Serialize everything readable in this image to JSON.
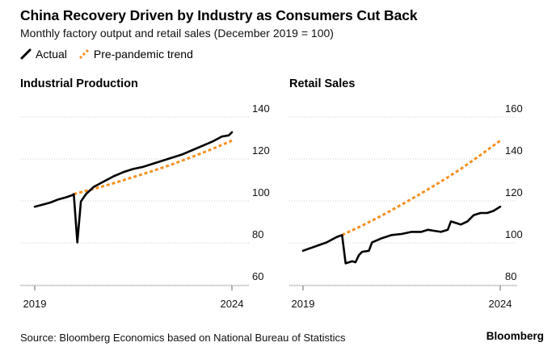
{
  "header": {
    "title": "China Recovery Driven by Industry as Consumers Cut Back",
    "subtitle": "Monthly factory output and retail sales (December 2019 = 100)"
  },
  "legend": {
    "actual_label": "Actual",
    "trend_label": "Pre-pandemic trend"
  },
  "colors": {
    "actual": "#000000",
    "trend": "#f5901f",
    "grid": "#cccccc"
  },
  "footer": {
    "source": "Source: Bloomberg Economics based on National Bureau of Statistics",
    "brand": "Bloomberg"
  },
  "chart_data": [
    {
      "type": "line",
      "title": "Industrial Production",
      "x_range": [
        2019.0,
        2024.0
      ],
      "x_ticks": [
        "2019",
        "2024"
      ],
      "ylim": [
        60,
        140
      ],
      "y_ticks": [
        60,
        80,
        100,
        120,
        140
      ],
      "y_axis_side": "right",
      "series": [
        {
          "name": "Actual",
          "style": "solid",
          "points": [
            [
              2019.0,
              93.0
            ],
            [
              2019.2,
              94.0
            ],
            [
              2019.4,
              95.0
            ],
            [
              2019.6,
              96.5
            ],
            [
              2019.8,
              97.5
            ],
            [
              2019.95,
              98.5
            ],
            [
              2019.99,
              99.0
            ],
            [
              2020.08,
              76.0
            ],
            [
              2020.17,
              95.5
            ],
            [
              2020.3,
              99.0
            ],
            [
              2020.5,
              102.5
            ],
            [
              2020.75,
              105.0
            ],
            [
              2021.0,
              107.5
            ],
            [
              2021.25,
              109.5
            ],
            [
              2021.5,
              111.0
            ],
            [
              2021.75,
              112.0
            ],
            [
              2022.0,
              113.5
            ],
            [
              2022.25,
              115.0
            ],
            [
              2022.5,
              116.5
            ],
            [
              2022.75,
              118.0
            ],
            [
              2023.0,
              120.0
            ],
            [
              2023.25,
              122.0
            ],
            [
              2023.5,
              124.0
            ],
            [
              2023.75,
              126.5
            ],
            [
              2023.92,
              127.0
            ],
            [
              2024.0,
              128.5
            ]
          ]
        },
        {
          "name": "Pre-pandemic trend",
          "style": "dashed",
          "points": [
            [
              2019.99,
              99.0
            ],
            [
              2020.5,
              101.5
            ],
            [
              2021.0,
              104.2
            ],
            [
              2021.5,
              107.1
            ],
            [
              2022.0,
              110.1
            ],
            [
              2022.5,
              113.3
            ],
            [
              2023.0,
              116.8
            ],
            [
              2023.5,
              120.5
            ],
            [
              2024.0,
              124.5
            ]
          ]
        }
      ]
    },
    {
      "type": "line",
      "title": "Retail Sales",
      "x_range": [
        2019.0,
        2024.0
      ],
      "x_ticks": [
        "2019",
        "2024"
      ],
      "ylim": [
        80,
        160
      ],
      "y_ticks": [
        80,
        100,
        120,
        140,
        160
      ],
      "y_axis_side": "right",
      "series": [
        {
          "name": "Actual",
          "style": "solid",
          "points": [
            [
              2019.0,
              92.0
            ],
            [
              2019.3,
              94.0
            ],
            [
              2019.6,
              96.0
            ],
            [
              2019.85,
              98.5
            ],
            [
              2019.99,
              99.5
            ],
            [
              2020.08,
              86.0
            ],
            [
              2020.25,
              87.0
            ],
            [
              2020.33,
              86.5
            ],
            [
              2020.42,
              90.0
            ],
            [
              2020.5,
              91.5
            ],
            [
              2020.67,
              92.0
            ],
            [
              2020.75,
              96.0
            ],
            [
              2021.0,
              98.0
            ],
            [
              2021.25,
              99.5
            ],
            [
              2021.5,
              100.0
            ],
            [
              2021.75,
              101.0
            ],
            [
              2022.0,
              101.0
            ],
            [
              2022.17,
              102.0
            ],
            [
              2022.33,
              101.5
            ],
            [
              2022.5,
              101.0
            ],
            [
              2022.67,
              102.0
            ],
            [
              2022.75,
              106.0
            ],
            [
              2022.92,
              105.0
            ],
            [
              2023.0,
              104.5
            ],
            [
              2023.17,
              106.0
            ],
            [
              2023.33,
              109.0
            ],
            [
              2023.5,
              110.0
            ],
            [
              2023.67,
              110.0
            ],
            [
              2023.83,
              111.0
            ],
            [
              2024.0,
              113.0
            ]
          ]
        },
        {
          "name": "Pre-pandemic trend",
          "style": "dashed",
          "points": [
            [
              2019.99,
              99.5
            ],
            [
              2020.5,
              104.0
            ],
            [
              2021.0,
              108.8
            ],
            [
              2021.5,
              114.0
            ],
            [
              2022.0,
              119.4
            ],
            [
              2022.5,
              125.0
            ],
            [
              2023.0,
              131.0
            ],
            [
              2023.5,
              137.6
            ],
            [
              2024.0,
              144.5
            ]
          ]
        }
      ]
    }
  ]
}
